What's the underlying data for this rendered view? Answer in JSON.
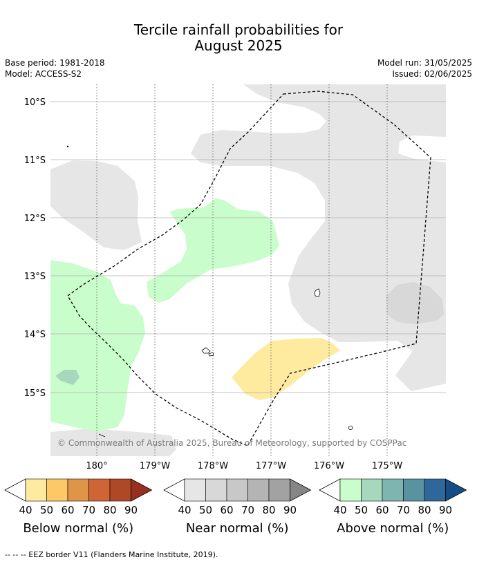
{
  "title": {
    "line1": "Tercile rainfall probabilities for",
    "line2": "August 2025"
  },
  "meta": {
    "base_period": "Base period: 1981-2018",
    "model": "Model: ACCESS-S2",
    "model_run": "Model run: 31/05/2025",
    "issued": "Issued: 02/06/2025"
  },
  "map": {
    "lat_labels": [
      "10°S",
      "11°S",
      "12°S",
      "13°S",
      "14°S",
      "15°S"
    ],
    "lon_labels": [
      "180°",
      "179°W",
      "178°W",
      "177°W",
      "176°W",
      "175°W"
    ],
    "copyright": "© Commonwealth of Australia 2025, Bureau of Meteorology, supported by COSPPac",
    "colors": {
      "near_normal_40": "#e6e6e6",
      "near_normal_50": "#d8d8d8",
      "above_normal_40": "#c9fdcb",
      "above_normal_50": "#a6d8bd",
      "below_normal_40": "#feeba0",
      "grid": "#b0b0b0",
      "eez_border": "#000000"
    }
  },
  "colorbars": [
    {
      "title": "Below normal (%)",
      "ticks": [
        "40",
        "50",
        "60",
        "70",
        "80",
        "90"
      ],
      "colors": [
        "#feeba0",
        "#fdc865",
        "#e09447",
        "#cf6434",
        "#ae4827",
        "#983020"
      ]
    },
    {
      "title": "Near normal (%)",
      "ticks": [
        "40",
        "50",
        "60",
        "70",
        "80",
        "90"
      ],
      "colors": [
        "#e6e6e6",
        "#d8d8d8",
        "#c8c8c8",
        "#b4b4b4",
        "#a2a2a2",
        "#868686"
      ]
    },
    {
      "title": "Above normal (%)",
      "ticks": [
        "40",
        "50",
        "60",
        "70",
        "80",
        "90"
      ],
      "colors": [
        "#c9fdcb",
        "#a6d8bd",
        "#7fb5b0",
        "#5993a2",
        "#30679b",
        "#154e86"
      ]
    }
  ],
  "footnote": "--  --  -- EEZ border V11 (Flanders Marine Institute, 2019)."
}
